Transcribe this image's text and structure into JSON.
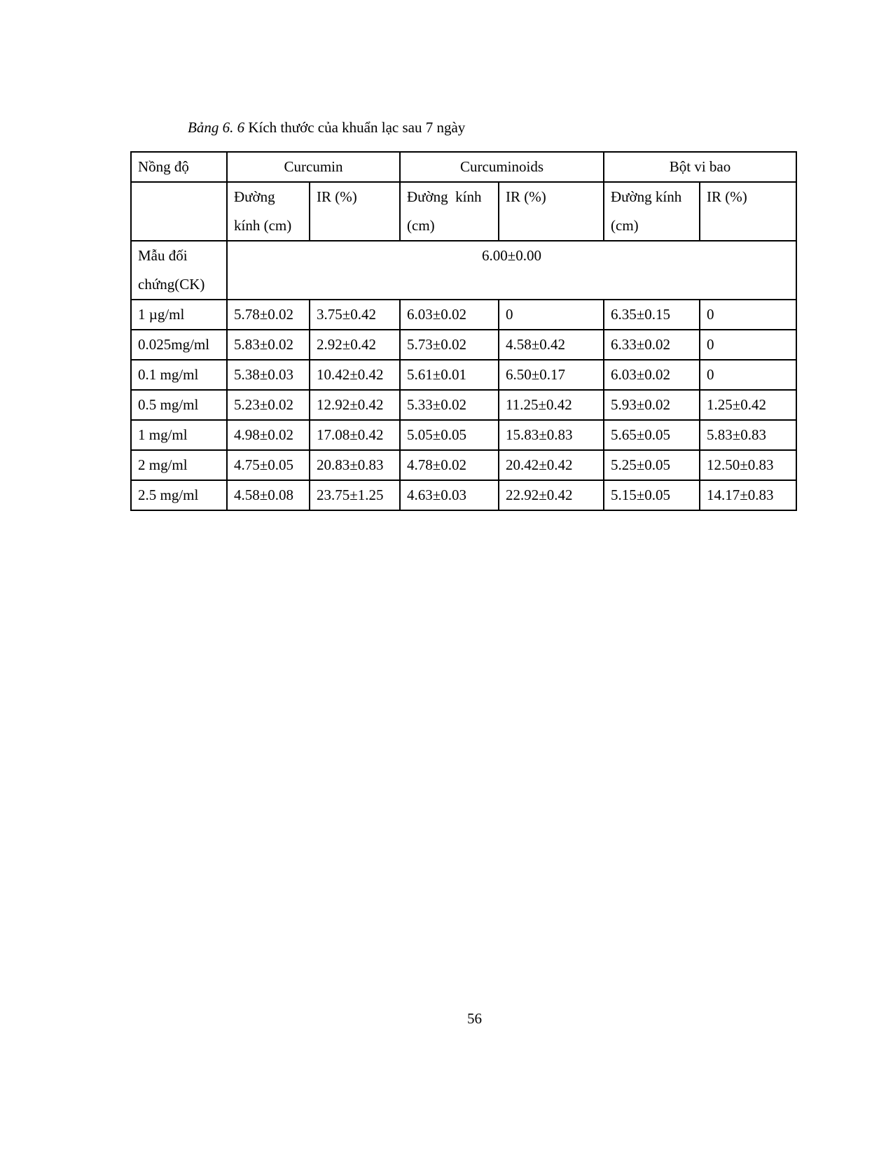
{
  "caption": {
    "label": "Bảng 6. 6",
    "text": " Kích thước của khuẩn lạc sau 7 ngày"
  },
  "table": {
    "header": {
      "concentration": "Nồng độ",
      "groups": [
        "Curcumin",
        "Curcuminoids",
        "Bột vi bao"
      ],
      "subheaders": [
        "Đường kính (cm)",
        "IR (%)",
        "Đường  kính (cm)",
        "IR (%)",
        "Đường kính (cm)",
        "IR (%)"
      ]
    },
    "control": {
      "label": "Mẫu đối chứng(CK)",
      "value": "6.00±0.00"
    },
    "rows": [
      [
        "1 µg/ml",
        "5.78±0.02",
        "3.75±0.42",
        "6.03±0.02",
        "0",
        "6.35±0.15",
        "0"
      ],
      [
        "0.025mg/ml",
        "5.83±0.02",
        "2.92±0.42",
        "5.73±0.02",
        "4.58±0.42",
        "6.33±0.02",
        "0"
      ],
      [
        "0.1 mg/ml",
        "5.38±0.03",
        "10.42±0.42",
        "5.61±0.01",
        "6.50±0.17",
        "6.03±0.02",
        "0"
      ],
      [
        "0.5 mg/ml",
        "5.23±0.02",
        "12.92±0.42",
        "5.33±0.02",
        "11.25±0.42",
        "5.93±0.02",
        "1.25±0.42"
      ],
      [
        "1 mg/ml",
        "4.98±0.02",
        "17.08±0.42",
        "5.05±0.05",
        "15.83±0.83",
        "5.65±0.05",
        "5.83±0.83"
      ],
      [
        "2 mg/ml",
        "4.75±0.05",
        "20.83±0.83",
        "4.78±0.02",
        "20.42±0.42",
        "5.25±0.05",
        "12.50±0.83"
      ],
      [
        "2.5 mg/ml",
        "4.58±0.08",
        "23.75±1.25",
        "4.63±0.03",
        "22.92±0.42",
        "5.15±0.05",
        "14.17±0.83"
      ]
    ]
  },
  "page_number": "56"
}
